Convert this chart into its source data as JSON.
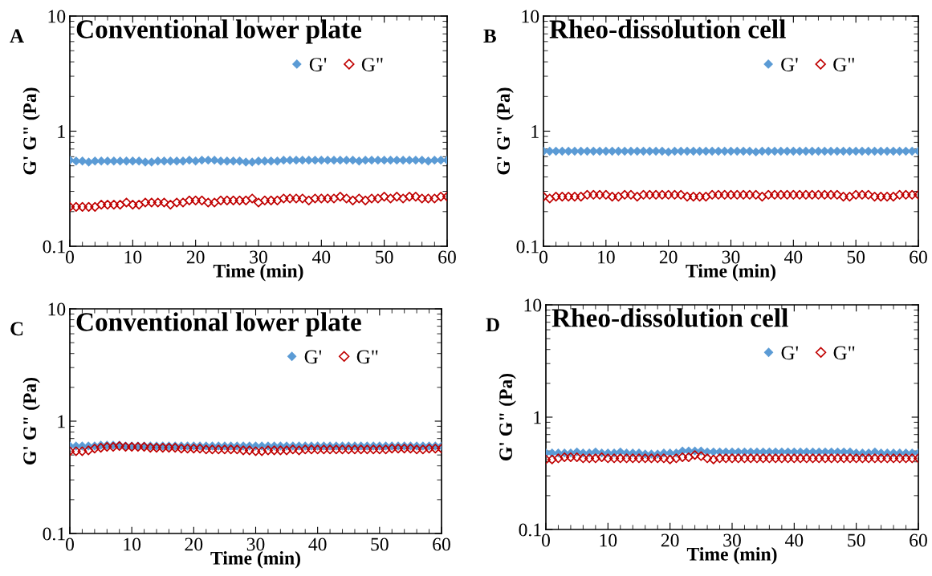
{
  "chart_data": [
    {
      "type": "scatter",
      "title": "Conventional lower plate",
      "xlabel": "Time (min)",
      "ylabel": "G' G\" (Pa)",
      "annotations": [
        "A"
      ],
      "log": "y",
      "xlim": [
        0,
        60
      ],
      "xticks": [
        0,
        10,
        20,
        30,
        40,
        50,
        60
      ],
      "ylim": [
        0.1,
        10
      ],
      "yticks": [
        0.1,
        1,
        10
      ],
      "grid": false,
      "legend": "top right",
      "marker": "diamond",
      "x": [
        0,
        1,
        2,
        3,
        4,
        5,
        6,
        7,
        8,
        9,
        10,
        11,
        12,
        13,
        14,
        15,
        16,
        17,
        18,
        19,
        20,
        21,
        22,
        23,
        24,
        25,
        26,
        27,
        28,
        29,
        30,
        31,
        32,
        33,
        34,
        35,
        36,
        37,
        38,
        39,
        40,
        41,
        42,
        43,
        44,
        45,
        46,
        47,
        48,
        49,
        50,
        51,
        52,
        53,
        54,
        55,
        56,
        57,
        58,
        59,
        60
      ],
      "series": [
        {
          "name": "G'",
          "color": "#5b9bd5",
          "values": [
            0.56,
            0.55,
            0.55,
            0.54,
            0.55,
            0.55,
            0.55,
            0.55,
            0.55,
            0.55,
            0.55,
            0.55,
            0.54,
            0.54,
            0.55,
            0.55,
            0.55,
            0.55,
            0.55,
            0.56,
            0.55,
            0.56,
            0.56,
            0.56,
            0.55,
            0.55,
            0.55,
            0.55,
            0.54,
            0.54,
            0.55,
            0.55,
            0.55,
            0.55,
            0.56,
            0.56,
            0.56,
            0.56,
            0.56,
            0.56,
            0.56,
            0.56,
            0.56,
            0.56,
            0.56,
            0.56,
            0.55,
            0.56,
            0.56,
            0.56,
            0.56,
            0.56,
            0.56,
            0.56,
            0.56,
            0.56,
            0.56,
            0.55,
            0.56,
            0.56,
            0.56
          ]
        },
        {
          "name": "G\"",
          "color": "#c00000",
          "values": [
            0.22,
            0.22,
            0.22,
            0.22,
            0.22,
            0.23,
            0.23,
            0.23,
            0.23,
            0.24,
            0.23,
            0.23,
            0.24,
            0.24,
            0.24,
            0.24,
            0.23,
            0.24,
            0.24,
            0.25,
            0.25,
            0.25,
            0.24,
            0.24,
            0.25,
            0.25,
            0.25,
            0.25,
            0.25,
            0.26,
            0.24,
            0.25,
            0.25,
            0.25,
            0.26,
            0.26,
            0.26,
            0.26,
            0.25,
            0.26,
            0.26,
            0.26,
            0.26,
            0.27,
            0.26,
            0.25,
            0.26,
            0.25,
            0.26,
            0.26,
            0.27,
            0.26,
            0.27,
            0.26,
            0.27,
            0.27,
            0.26,
            0.26,
            0.26,
            0.27,
            0.27
          ]
        }
      ]
    },
    {
      "type": "scatter",
      "title": "Rheo-dissolution cell",
      "xlabel": "Time (min)",
      "ylabel": "G' G\" (Pa)",
      "annotations": [
        "B"
      ],
      "log": "y",
      "xlim": [
        0,
        60
      ],
      "xticks": [
        0,
        10,
        20,
        30,
        40,
        50,
        60
      ],
      "ylim": [
        0.1,
        10
      ],
      "yticks": [
        0.1,
        1,
        10
      ],
      "grid": false,
      "legend": "top right",
      "marker": "diamond",
      "x": [
        0,
        1,
        2,
        3,
        4,
        5,
        6,
        7,
        8,
        9,
        10,
        11,
        12,
        13,
        14,
        15,
        16,
        17,
        18,
        19,
        20,
        21,
        22,
        23,
        24,
        25,
        26,
        27,
        28,
        29,
        30,
        31,
        32,
        33,
        34,
        35,
        36,
        37,
        38,
        39,
        40,
        41,
        42,
        43,
        44,
        45,
        46,
        47,
        48,
        49,
        50,
        51,
        52,
        53,
        54,
        55,
        56,
        57,
        58,
        59,
        60
      ],
      "series": [
        {
          "name": "G'",
          "color": "#5b9bd5",
          "values": [
            0.67,
            0.67,
            0.67,
            0.67,
            0.67,
            0.67,
            0.67,
            0.67,
            0.67,
            0.67,
            0.67,
            0.67,
            0.67,
            0.67,
            0.67,
            0.67,
            0.67,
            0.67,
            0.67,
            0.67,
            0.66,
            0.67,
            0.67,
            0.67,
            0.67,
            0.67,
            0.67,
            0.67,
            0.67,
            0.67,
            0.67,
            0.67,
            0.67,
            0.67,
            0.66,
            0.67,
            0.67,
            0.67,
            0.67,
            0.67,
            0.67,
            0.67,
            0.67,
            0.67,
            0.67,
            0.67,
            0.67,
            0.67,
            0.67,
            0.67,
            0.67,
            0.67,
            0.67,
            0.67,
            0.67,
            0.67,
            0.67,
            0.67,
            0.67,
            0.67,
            0.67
          ]
        },
        {
          "name": "G\"",
          "color": "#c00000",
          "values": [
            0.27,
            0.26,
            0.27,
            0.27,
            0.27,
            0.27,
            0.27,
            0.28,
            0.28,
            0.28,
            0.28,
            0.27,
            0.27,
            0.28,
            0.28,
            0.27,
            0.28,
            0.28,
            0.28,
            0.28,
            0.28,
            0.28,
            0.28,
            0.27,
            0.27,
            0.27,
            0.27,
            0.28,
            0.28,
            0.28,
            0.28,
            0.28,
            0.28,
            0.28,
            0.28,
            0.27,
            0.28,
            0.28,
            0.28,
            0.28,
            0.28,
            0.28,
            0.28,
            0.28,
            0.28,
            0.28,
            0.28,
            0.28,
            0.27,
            0.27,
            0.28,
            0.28,
            0.28,
            0.27,
            0.27,
            0.27,
            0.27,
            0.28,
            0.28,
            0.28,
            0.28
          ]
        }
      ]
    },
    {
      "type": "scatter",
      "title": "Conventional lower plate",
      "xlabel": "Time (min)",
      "ylabel": "G' G\" (Pa)",
      "annotations": [
        "C"
      ],
      "log": "y",
      "xlim": [
        0,
        60
      ],
      "xticks": [
        0,
        10,
        20,
        30,
        40,
        50,
        60
      ],
      "ylim": [
        0.1,
        10
      ],
      "yticks": [
        0.1,
        1,
        10
      ],
      "grid": false,
      "legend": "top right",
      "marker": "diamond",
      "x": [
        0,
        1,
        2,
        3,
        4,
        5,
        6,
        7,
        8,
        9,
        10,
        11,
        12,
        13,
        14,
        15,
        16,
        17,
        18,
        19,
        20,
        21,
        22,
        23,
        24,
        25,
        26,
        27,
        28,
        29,
        30,
        31,
        32,
        33,
        34,
        35,
        36,
        37,
        38,
        39,
        40,
        41,
        42,
        43,
        44,
        45,
        46,
        47,
        48,
        49,
        50,
        51,
        52,
        53,
        54,
        55,
        56,
        57,
        58,
        59,
        60
      ],
      "series": [
        {
          "name": "G'",
          "color": "#5b9bd5",
          "values": [
            0.6,
            0.6,
            0.6,
            0.6,
            0.6,
            0.61,
            0.61,
            0.61,
            0.61,
            0.6,
            0.6,
            0.6,
            0.6,
            0.6,
            0.6,
            0.6,
            0.6,
            0.6,
            0.6,
            0.6,
            0.6,
            0.6,
            0.6,
            0.6,
            0.6,
            0.6,
            0.6,
            0.6,
            0.6,
            0.6,
            0.6,
            0.6,
            0.6,
            0.6,
            0.6,
            0.6,
            0.6,
            0.6,
            0.6,
            0.6,
            0.6,
            0.6,
            0.6,
            0.6,
            0.6,
            0.6,
            0.6,
            0.6,
            0.6,
            0.6,
            0.6,
            0.6,
            0.6,
            0.6,
            0.6,
            0.6,
            0.6,
            0.6,
            0.6,
            0.6,
            0.6
          ]
        },
        {
          "name": "G\"",
          "color": "#c00000",
          "values": [
            0.54,
            0.54,
            0.54,
            0.55,
            0.57,
            0.58,
            0.59,
            0.59,
            0.6,
            0.59,
            0.59,
            0.59,
            0.59,
            0.58,
            0.58,
            0.58,
            0.58,
            0.58,
            0.57,
            0.57,
            0.57,
            0.57,
            0.56,
            0.56,
            0.56,
            0.56,
            0.56,
            0.56,
            0.55,
            0.55,
            0.54,
            0.54,
            0.55,
            0.55,
            0.55,
            0.55,
            0.56,
            0.55,
            0.56,
            0.56,
            0.56,
            0.56,
            0.56,
            0.56,
            0.56,
            0.56,
            0.56,
            0.56,
            0.56,
            0.56,
            0.56,
            0.56,
            0.57,
            0.57,
            0.57,
            0.57,
            0.56,
            0.56,
            0.57,
            0.57,
            0.57
          ]
        }
      ]
    },
    {
      "type": "scatter",
      "title": "Rheo-dissolution cell",
      "xlabel": "Time (min)",
      "ylabel": "G' G\" (Pa)",
      "annotations": [
        "D"
      ],
      "log": "y",
      "xlim": [
        0,
        60
      ],
      "xticks": [
        0,
        10,
        20,
        30,
        40,
        50,
        60
      ],
      "ylim": [
        0.1,
        10
      ],
      "yticks": [
        0.1,
        1,
        10
      ],
      "grid": false,
      "legend": "top right",
      "marker": "diamond",
      "x": [
        0,
        1,
        2,
        3,
        4,
        5,
        6,
        7,
        8,
        9,
        10,
        11,
        12,
        13,
        14,
        15,
        16,
        17,
        18,
        19,
        20,
        21,
        22,
        23,
        24,
        25,
        26,
        27,
        28,
        29,
        30,
        31,
        32,
        33,
        34,
        35,
        36,
        37,
        38,
        39,
        40,
        41,
        42,
        43,
        44,
        45,
        46,
        47,
        48,
        49,
        50,
        51,
        52,
        53,
        54,
        55,
        56,
        57,
        58,
        59,
        60
      ],
      "series": [
        {
          "name": "G'",
          "color": "#5b9bd5",
          "values": [
            0.48,
            0.48,
            0.48,
            0.48,
            0.48,
            0.49,
            0.48,
            0.48,
            0.49,
            0.48,
            0.48,
            0.48,
            0.49,
            0.48,
            0.48,
            0.48,
            0.47,
            0.47,
            0.47,
            0.48,
            0.48,
            0.48,
            0.5,
            0.5,
            0.5,
            0.5,
            0.49,
            0.49,
            0.49,
            0.49,
            0.49,
            0.49,
            0.49,
            0.49,
            0.49,
            0.49,
            0.49,
            0.49,
            0.49,
            0.49,
            0.49,
            0.49,
            0.49,
            0.49,
            0.49,
            0.49,
            0.49,
            0.49,
            0.49,
            0.49,
            0.48,
            0.48,
            0.48,
            0.49,
            0.48,
            0.48,
            0.48,
            0.48,
            0.48,
            0.48,
            0.48
          ]
        },
        {
          "name": "G\"",
          "color": "#c00000",
          "values": [
            0.42,
            0.42,
            0.43,
            0.44,
            0.44,
            0.44,
            0.43,
            0.43,
            0.43,
            0.44,
            0.43,
            0.43,
            0.43,
            0.43,
            0.43,
            0.43,
            0.43,
            0.43,
            0.43,
            0.43,
            0.42,
            0.43,
            0.44,
            0.44,
            0.46,
            0.45,
            0.43,
            0.42,
            0.43,
            0.43,
            0.43,
            0.43,
            0.43,
            0.43,
            0.43,
            0.43,
            0.43,
            0.43,
            0.43,
            0.43,
            0.43,
            0.43,
            0.43,
            0.43,
            0.43,
            0.43,
            0.43,
            0.43,
            0.43,
            0.43,
            0.43,
            0.43,
            0.43,
            0.43,
            0.43,
            0.43,
            0.43,
            0.43,
            0.43,
            0.43,
            0.43
          ]
        }
      ]
    }
  ]
}
